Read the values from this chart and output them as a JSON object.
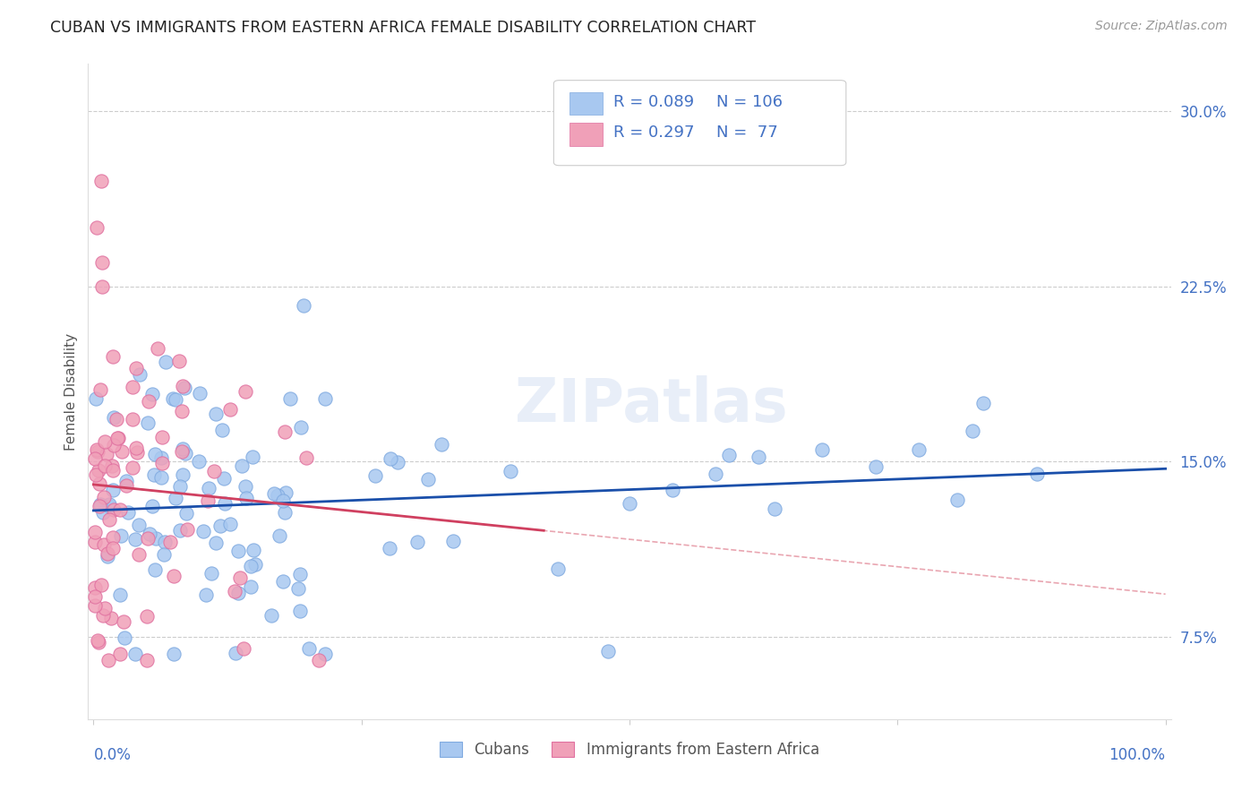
{
  "title": "CUBAN VS IMMIGRANTS FROM EASTERN AFRICA FEMALE DISABILITY CORRELATION CHART",
  "source": "Source: ZipAtlas.com",
  "ylabel": "Female Disability",
  "legend_label1": "Cubans",
  "legend_label2": "Immigrants from Eastern Africa",
  "R1": 0.089,
  "N1": 106,
  "R2": 0.297,
  "N2": 77,
  "color_blue": "#a8c8f0",
  "color_pink": "#f0a0b8",
  "line_color_blue": "#1a4faa",
  "line_color_pink": "#d04060",
  "background_color": "#ffffff",
  "ytick_vals": [
    0.075,
    0.15,
    0.225,
    0.3
  ],
  "ytick_labels": [
    "7.5%",
    "15.0%",
    "22.5%",
    "30.0%"
  ],
  "ymin": 0.04,
  "ymax": 0.32,
  "xmin": -0.005,
  "xmax": 1.005
}
